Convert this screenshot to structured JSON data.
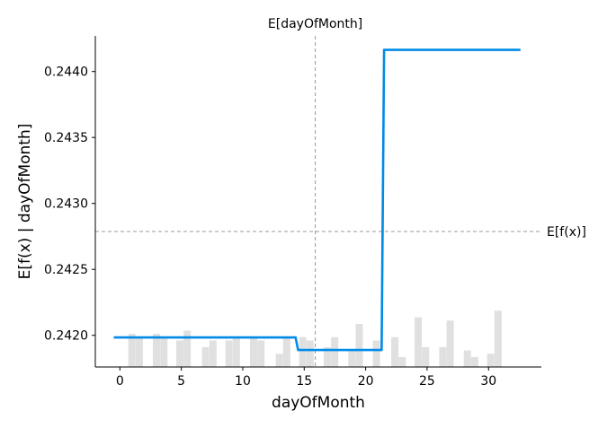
{
  "chart_data": {
    "type": "line",
    "title": "",
    "xlabel": "dayOfMonth",
    "ylabel": "E[f(x) | dayOfMonth]",
    "xlim": [
      -2.0,
      34.3
    ],
    "ylim": [
      0.24176,
      0.24427
    ],
    "x_ticks": [
      0,
      5,
      10,
      15,
      20,
      25,
      30
    ],
    "y_ticks": [
      0.242,
      0.2425,
      0.243,
      0.2435,
      0.244
    ],
    "y_tick_labels": [
      "0.2420",
      "0.2425",
      "0.2430",
      "0.2435",
      "0.2440"
    ],
    "series": [
      {
        "name": "",
        "color": "#008be6",
        "x": [
          -0.5,
          14.3,
          14.5,
          21.3,
          21.5,
          32.6
        ],
        "y": [
          0.241984,
          0.241984,
          0.241889,
          0.241889,
          0.244164,
          0.244164
        ]
      }
    ],
    "expected_value_line": {
      "label": "E[f(x)]",
      "y": 0.242787,
      "color": "#999999"
    },
    "expected_feature_line": {
      "label": "E[dayOfMonth]",
      "x": 15.9,
      "color": "#999999"
    },
    "histogram": {
      "color": "#e0e0e0",
      "bin_width": 0.63,
      "bars": [
        {
          "x": 1.0,
          "h": 0.1
        },
        {
          "x": 1.6,
          "h": 0.09
        },
        {
          "x": 3.0,
          "h": 0.1
        },
        {
          "x": 3.6,
          "h": 0.09
        },
        {
          "x": 4.9,
          "h": 0.08
        },
        {
          "x": 5.5,
          "h": 0.11
        },
        {
          "x": 7.0,
          "h": 0.06
        },
        {
          "x": 7.6,
          "h": 0.08
        },
        {
          "x": 8.9,
          "h": 0.08
        },
        {
          "x": 9.5,
          "h": 0.09
        },
        {
          "x": 10.9,
          "h": 0.09
        },
        {
          "x": 11.5,
          "h": 0.08
        },
        {
          "x": 13.0,
          "h": 0.04
        },
        {
          "x": 13.6,
          "h": 0.09
        },
        {
          "x": 14.9,
          "h": 0.09
        },
        {
          "x": 15.5,
          "h": 0.08
        },
        {
          "x": 16.9,
          "h": 0.06
        },
        {
          "x": 17.5,
          "h": 0.09
        },
        {
          "x": 18.9,
          "h": 0.05
        },
        {
          "x": 19.5,
          "h": 0.13
        },
        {
          "x": 20.9,
          "h": 0.08
        },
        {
          "x": 22.4,
          "h": 0.09
        },
        {
          "x": 23.0,
          "h": 0.03
        },
        {
          "x": 24.3,
          "h": 0.15
        },
        {
          "x": 24.9,
          "h": 0.06
        },
        {
          "x": 26.3,
          "h": 0.06
        },
        {
          "x": 26.9,
          "h": 0.14
        },
        {
          "x": 28.3,
          "h": 0.05
        },
        {
          "x": 28.9,
          "h": 0.03
        },
        {
          "x": 30.2,
          "h": 0.04
        },
        {
          "x": 30.8,
          "h": 0.17
        }
      ]
    }
  }
}
